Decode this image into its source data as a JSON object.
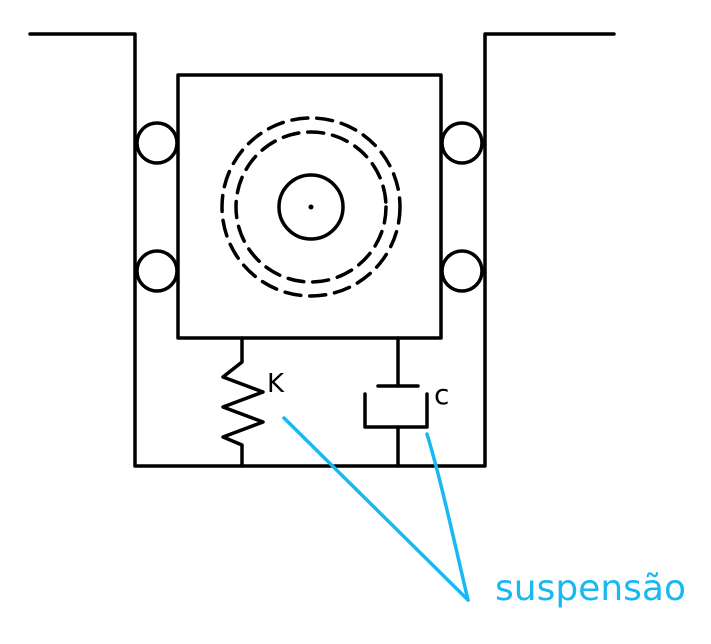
{
  "labels": {
    "spring": "K",
    "damper": "c",
    "annotation": "suspensão"
  },
  "colors": {
    "line": "#000000",
    "annotation": "#18b9f2",
    "background": "#ffffff"
  }
}
